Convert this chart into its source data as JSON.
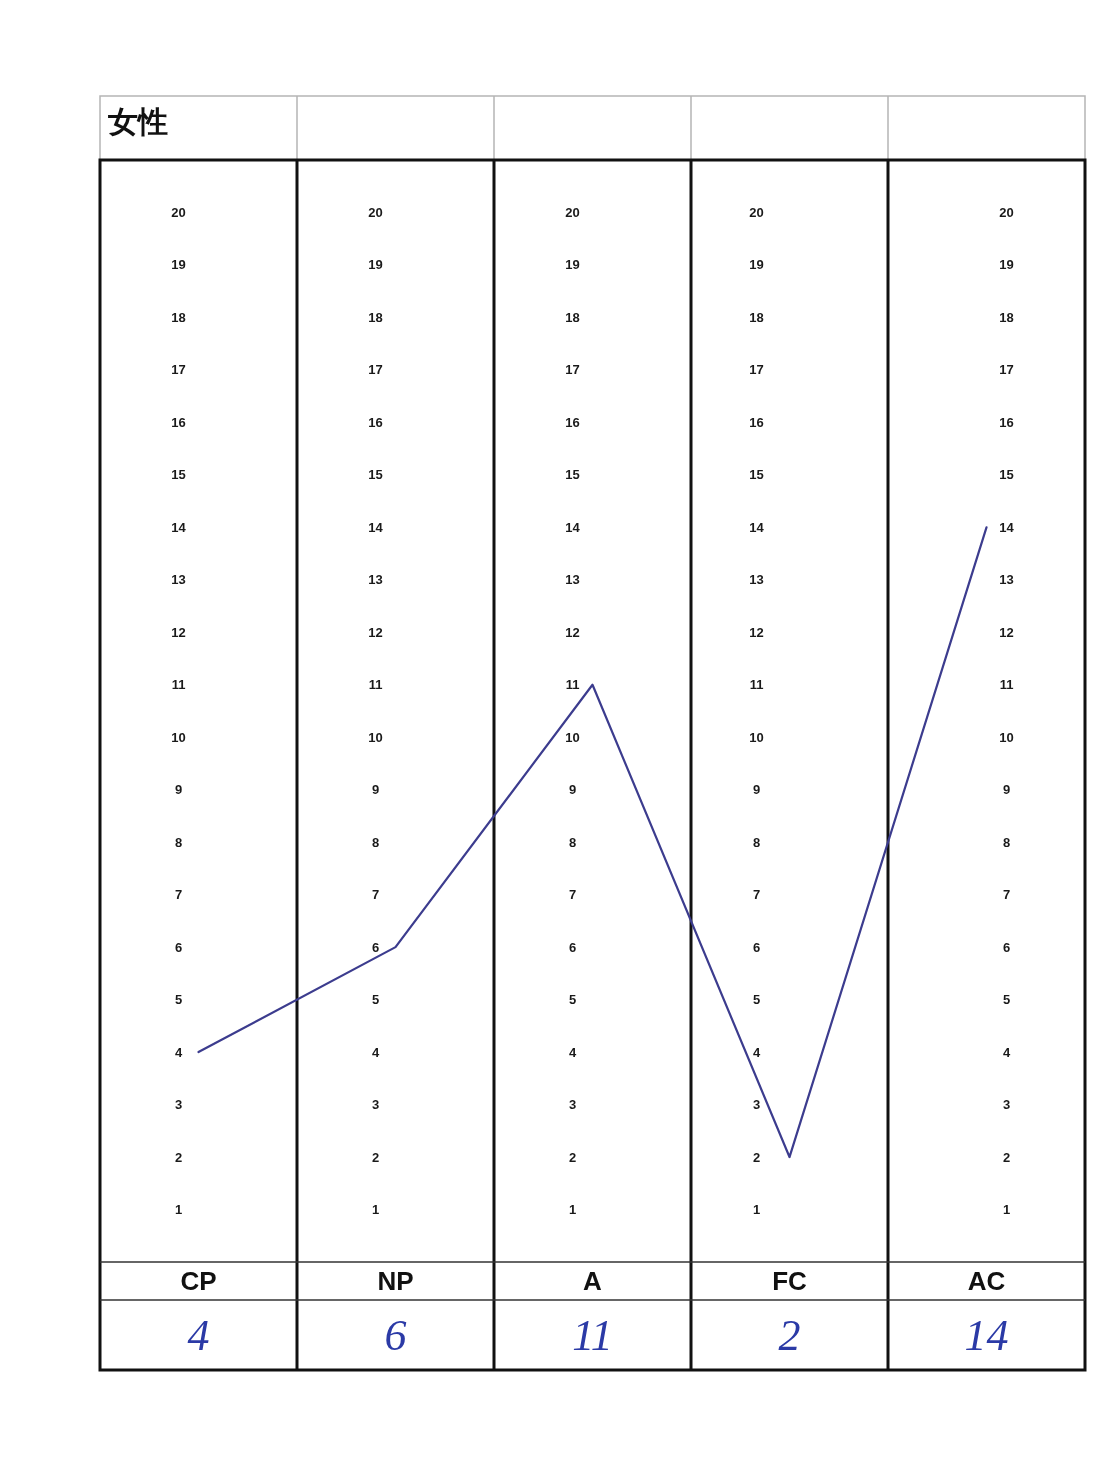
{
  "chart_data": {
    "type": "line",
    "title": "女性",
    "categories": [
      "CP",
      "NP",
      "A",
      "FC",
      "AC"
    ],
    "values": [
      4,
      6,
      11,
      2,
      14
    ],
    "color": "#3c3c8e",
    "data_labels": true,
    "line_style": "solid",
    "ylim": [
      0,
      21
    ],
    "yticks": [
      1,
      2,
      3,
      4,
      5,
      6,
      7,
      8,
      9,
      10,
      11,
      12,
      13,
      14,
      15,
      16,
      17,
      18,
      19,
      20
    ],
    "y2lim": [
      0,
      21
    ],
    "y2ticks": [
      1,
      2,
      3,
      4,
      5,
      6,
      7,
      8,
      9,
      10,
      11,
      12,
      13,
      14,
      15,
      16,
      17,
      18,
      19,
      20
    ],
    "y3lim": [
      0,
      21
    ],
    "y3ticks": [
      1,
      2,
      3,
      4,
      5,
      6,
      7,
      8,
      9,
      10,
      11,
      12,
      13,
      14,
      15,
      16,
      17,
      18,
      19,
      20
    ],
    "annotations": [
      "1",
      "2",
      "3",
      "4",
      "5",
      "6",
      "7",
      "8",
      "9",
      "10",
      "11",
      "12",
      "13",
      "14",
      "15",
      "16",
      "17",
      "18",
      "19",
      "20",
      "1",
      "2",
      "3",
      "4",
      "5",
      "6",
      "7",
      "8",
      "9",
      "10",
      "11",
      "12",
      "13",
      "14",
      "15",
      "16",
      "17",
      "18",
      "19",
      "20"
    ]
  }
}
